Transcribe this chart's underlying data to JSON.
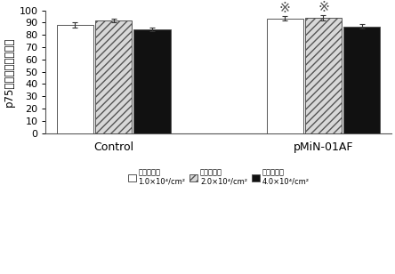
{
  "groups": [
    "Control",
    "pMiN-01AF"
  ],
  "values": {
    "Control": [
      88.0,
      91.5,
      84.5
    ],
    "pMiN-01AF": [
      93.5,
      94.0,
      87.0
    ]
  },
  "errors": {
    "Control": [
      2.2,
      1.5,
      1.2
    ],
    "pMiN-01AF": [
      1.5,
      2.0,
      1.5
    ]
  },
  "significance": {
    "Control": [
      false,
      false,
      false
    ],
    "pMiN-01AF": [
      true,
      true,
      false
    ]
  },
  "ylabel": "p75阳性百分比（％）",
  "ylim": [
    0,
    100
  ],
  "yticks": [
    0,
    10,
    20,
    30,
    40,
    50,
    60,
    70,
    80,
    90,
    100
  ],
  "bar_colors": [
    "#ffffff",
    "#d8d8d8",
    "#111111"
  ],
  "bar_edgecolor": "#555555",
  "hatch_patterns": [
    "",
    "////",
    ""
  ],
  "bar_width": 0.28,
  "group_centers": [
    1.0,
    2.6
  ],
  "background_color": "#ffffff",
  "sig_marker": "※",
  "sig_fontsize": 11,
  "ylabel_fontsize": 8.5,
  "tick_fontsize": 8,
  "legend_fontsize": 6.0,
  "group_label_fontsize": 9,
  "legend_texts": [
    "接种密度：\n1.0×10⁴/cm²",
    "接种密度：\n2.0×10⁴/cm²",
    "接种密度：\n4.0×10⁴/cm²"
  ]
}
